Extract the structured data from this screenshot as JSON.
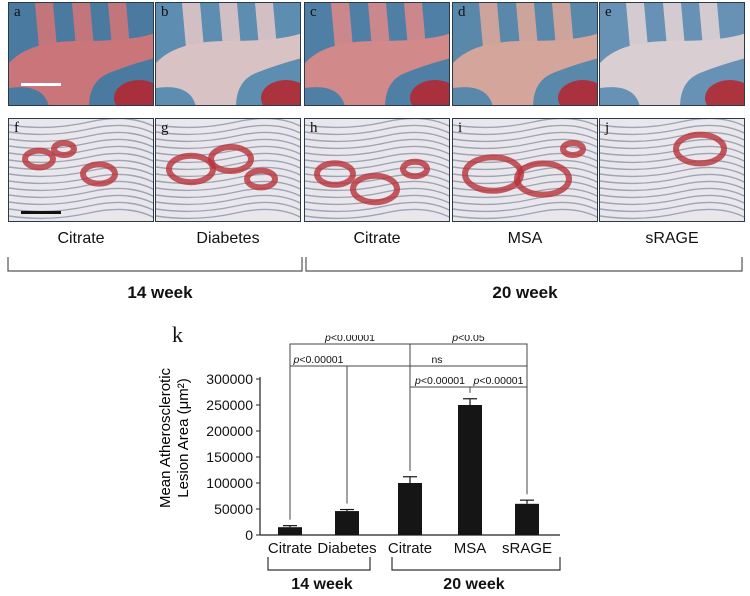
{
  "panels_top": [
    {
      "letter": "a"
    },
    {
      "letter": "b"
    },
    {
      "letter": "c"
    },
    {
      "letter": "d"
    },
    {
      "letter": "e"
    }
  ],
  "panels_bottom": [
    {
      "letter": "f"
    },
    {
      "letter": "g"
    },
    {
      "letter": "h"
    },
    {
      "letter": "i"
    },
    {
      "letter": "j"
    }
  ],
  "conditions": [
    "Citrate",
    "Diabetes",
    "Citrate",
    "MSA",
    "sRAGE"
  ],
  "weeks": {
    "w14": "14 week",
    "w20": "20 week"
  },
  "k_label": "k",
  "chart_data": {
    "type": "bar",
    "ylabel_line1": "Mean Atherosclerotic",
    "ylabel_line2": "Lesion Area (μm²)",
    "categories": [
      "Citrate",
      "Diabetes",
      "Citrate",
      "MSA",
      "sRAGE"
    ],
    "values": [
      15000,
      46000,
      100000,
      250000,
      60000
    ],
    "errors": [
      3000,
      3000,
      12000,
      12000,
      7000
    ],
    "ylim": [
      0,
      300000
    ],
    "yticks": [
      0,
      50000,
      100000,
      150000,
      200000,
      250000,
      300000
    ],
    "ytick_labels": [
      "0",
      "50000",
      "100000",
      "150000",
      "200000",
      "250000",
      "300000"
    ],
    "group_labels": [
      "14 week",
      "20 week"
    ],
    "significance": [
      {
        "from": 0,
        "to": 2,
        "label_p": "p",
        "label_rest": "<0.00001",
        "level": 340000
      },
      {
        "from": 0,
        "to": 1,
        "label_p": "p",
        "label_rest": "<0.00001",
        "level": 300000
      },
      {
        "from": 1,
        "to": 4,
        "label_p": "",
        "label_rest": "ns",
        "level": 300000
      },
      {
        "from": 2,
        "to": 4,
        "label_p": "p",
        "label_rest": "<0.05",
        "level": 340000
      },
      {
        "from": 2,
        "to": 3,
        "label_p": "p",
        "label_rest": "<0.00001",
        "level": 260000
      },
      {
        "from": 3,
        "to": 4,
        "label_p": "p",
        "label_rest": "<0.00001",
        "level": 260000
      }
    ]
  }
}
